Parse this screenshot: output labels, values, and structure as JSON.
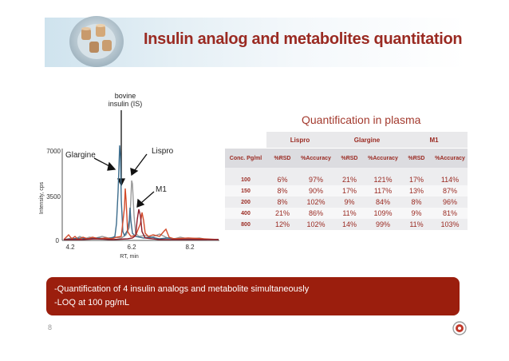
{
  "slide": {
    "title": "Insulin analog and metabolites quantitation",
    "page_number": "8"
  },
  "chromatogram": {
    "y_axis_label": "Intensity, cps",
    "x_axis_label": "RT, min",
    "y_ticks": [
      "7000",
      "3500",
      "0"
    ],
    "x_ticks": [
      "4.2",
      "6.2",
      "8.2"
    ],
    "annotations": {
      "bovine": "bovine",
      "insulin_is": "insulin (IS)",
      "glargine": "Glargine",
      "lispro": "Lispro",
      "m1": "M1"
    },
    "colors": {
      "blue": "#3c6c8c",
      "gray": "#9a9a9a",
      "red": "#d24a2a",
      "dark_red": "#8c1c2a"
    }
  },
  "quant_table": {
    "title": "Quantification in plasma",
    "groups": [
      "Lispro",
      "Glargine",
      "M1"
    ],
    "subheaders": [
      "Conc. Pg/ml",
      "%RSD",
      "%Accuracy",
      "%RSD",
      "%Accuracy",
      "%RSD",
      "%Accuracy"
    ],
    "rows": [
      [
        "100",
        "6%",
        "97%",
        "21%",
        "121%",
        "17%",
        "114%"
      ],
      [
        "150",
        "8%",
        "90%",
        "17%",
        "117%",
        "13%",
        "87%"
      ],
      [
        "200",
        "8%",
        "102%",
        "9%",
        "84%",
        "8%",
        "96%"
      ],
      [
        "400",
        "21%",
        "86%",
        "11%",
        "109%",
        "9%",
        "81%"
      ],
      [
        "800",
        "12%",
        "102%",
        "14%",
        "99%",
        "11%",
        "103%"
      ]
    ]
  },
  "callout": {
    "line1": "-Quantification of 4 insulin analogs and metabolite simultaneously",
    "line2": "-LOQ at 100 pg/mL"
  }
}
